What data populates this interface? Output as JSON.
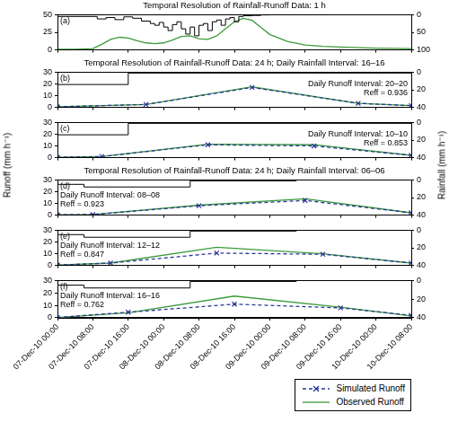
{
  "chart_data": {
    "type": "line",
    "ylabel": "Runoff (mm h⁻¹)",
    "y2label": "Rainfall (mm h⁻¹)",
    "xlim": [
      0,
      80
    ],
    "xticks": [
      {
        "value": 0,
        "label": "07-Dec-10 00:00"
      },
      {
        "value": 8,
        "label": "07-Dec-10 08:00"
      },
      {
        "value": 16,
        "label": "07-Dec-10 16:00"
      },
      {
        "value": 24,
        "label": "08-Dec-10 00:00"
      },
      {
        "value": 32,
        "label": "08-Dec-10 08:00"
      },
      {
        "value": 40,
        "label": "08-Dec-10 16:00"
      },
      {
        "value": 48,
        "label": "09-Dec-10 00:00"
      },
      {
        "value": 56,
        "label": "09-Dec-10 08:00"
      },
      {
        "value": 64,
        "label": "09-Dec-10 16:00"
      },
      {
        "value": 72,
        "label": "10-Dec-10 00:00"
      },
      {
        "value": 80,
        "label": "10-Dec-10 08:00"
      }
    ],
    "grid": false,
    "legend": "bottom right",
    "panels": [
      {
        "title": "Temporal Resolution of Rainfall-Runoff Data: 1 h",
        "annotations": [
          "(a)"
        ],
        "ylim": [
          0,
          50
        ],
        "yticks": [
          0,
          25,
          50
        ],
        "y2lim": [
          100,
          0
        ],
        "y2ticks": [
          0,
          50,
          100
        ],
        "tick_labels": "y",
        "series": [
          {
            "type": "step",
            "axis": "y2",
            "color": "#000000",
            "line_style": "solid",
            "x": [
              0,
              9,
              11,
              13,
              15,
              17,
              19,
              21,
              22,
              23,
              24,
              25,
              26,
              27,
              28,
              29,
              30,
              31,
              32,
              33,
              34,
              35,
              36,
              37,
              38,
              39,
              40,
              41,
              42,
              44,
              46,
              48,
              56
            ],
            "values": [
              0,
              5,
              12,
              8,
              14,
              6,
              10,
              18,
              25,
              30,
              22,
              35,
              45,
              28,
              20,
              40,
              55,
              35,
              60,
              30,
              25,
              45,
              20,
              15,
              30,
              12,
              8,
              20,
              5,
              3,
              2,
              0.5,
              0
            ]
          },
          {
            "name": "Observed Runoff",
            "color": "#3c9a3c",
            "line_style": "solid",
            "marker": "none",
            "x": [
              0,
              4,
              8,
              10,
              12,
              14,
              16,
              18,
              20,
              22,
              24,
              26,
              28,
              30,
              32,
              34,
              36,
              38,
              40,
              42,
              44,
              46,
              48,
              52,
              56,
              60,
              64,
              72,
              80
            ],
            "values": [
              1,
              1,
              2,
              8,
              15,
              18,
              17,
              13,
              10,
              9,
              10,
              14,
              19,
              20,
              16,
              15,
              20,
              30,
              40,
              45,
              42,
              32,
              22,
              12,
              7,
              5,
              4,
              2.5,
              2
            ]
          }
        ]
      },
      {
        "title": "Temporal Resolution of Rainfall-Runoff Data: 24 h; Daily Rainfall Interval: 16–16",
        "annotations": [
          "(b)",
          "Daily Runoff Interval: 20–20",
          "Reff = 0.936"
        ],
        "ylim": [
          0,
          30
        ],
        "yticks": [
          0,
          10,
          20,
          30
        ],
        "y2lim": [
          40,
          0
        ],
        "y2ticks": [
          0,
          20,
          40
        ],
        "tick_labels": "y",
        "series": [
          {
            "type": "step",
            "axis": "y2",
            "color": "#000000",
            "line_style": "solid",
            "x": [
              0,
              16,
              40
            ],
            "values": [
              1,
              14,
              1
            ]
          },
          {
            "name": "Simulated Runoff",
            "color": "#2b3596",
            "line_style": "dashed",
            "marker": "x",
            "x": [
              0,
              20,
              44,
              68,
              80
            ],
            "values": [
              0.5,
              2.5,
              17,
              3.5,
              1.5
            ]
          },
          {
            "name": "Observed Runoff",
            "color": "#3c9a3c",
            "line_style": "solid",
            "marker": "none",
            "x": [
              0,
              20,
              44,
              68,
              80
            ],
            "values": [
              0.5,
              2.5,
              17.5,
              3.5,
              1.5
            ]
          }
        ]
      },
      {
        "annotations": [
          "(c)",
          "Daily Runoff Interval: 10–10",
          "Reff = 0.853"
        ],
        "ylim": [
          0,
          30
        ],
        "yticks": [
          0,
          10,
          20,
          30
        ],
        "y2lim": [
          40,
          0
        ],
        "y2ticks": [
          0,
          20,
          40
        ],
        "tick_labels": "y",
        "series": [
          {
            "type": "step",
            "axis": "y2",
            "color": "#000000",
            "line_style": "solid",
            "x": [
              0,
              16,
              40
            ],
            "values": [
              1,
              14,
              1
            ]
          },
          {
            "name": "Simulated Runoff",
            "color": "#2b3596",
            "line_style": "dashed",
            "marker": "x",
            "x": [
              0,
              10,
              34,
              58,
              80
            ],
            "values": [
              0.3,
              1,
              11,
              10,
              2
            ]
          },
          {
            "name": "Observed Runoff",
            "color": "#3c9a3c",
            "line_style": "solid",
            "marker": "none",
            "x": [
              0,
              10,
              34,
              58,
              80
            ],
            "values": [
              0.3,
              1,
              11.5,
              11,
              2
            ]
          }
        ]
      },
      {
        "title": "Temporal Resolution of Rainfall-Runoff Data: 24 h; Daily Rainfall Interval: 06–06",
        "annotations": [
          "(d)",
          "Daily Runoff Interval: 08–08",
          "Reff = 0.923"
        ],
        "ylim": [
          0,
          30
        ],
        "yticks": [
          0,
          10,
          20,
          30
        ],
        "y2lim": [
          40,
          0
        ],
        "y2ticks": [
          0,
          20,
          40
        ],
        "tick_labels": "y",
        "series": [
          {
            "type": "step",
            "axis": "y2",
            "color": "#000000",
            "line_style": "solid",
            "x": [
              0,
              6,
              30,
              54,
              78
            ],
            "values": [
              0,
              5,
              8,
              1,
              0
            ]
          },
          {
            "name": "Simulated Runoff",
            "color": "#2b3596",
            "line_style": "dashed",
            "marker": "x",
            "x": [
              0,
              8,
              32,
              56,
              80
            ],
            "values": [
              0.3,
              0.5,
              8,
              12.5,
              2
            ]
          },
          {
            "name": "Observed Runoff",
            "color": "#3c9a3c",
            "line_style": "solid",
            "marker": "none",
            "x": [
              0,
              8,
              32,
              56,
              80
            ],
            "values": [
              0.3,
              0.5,
              8.5,
              14,
              2
            ]
          }
        ]
      },
      {
        "annotations": [
          "(e)",
          "Daily Runoff Interval: 12–12",
          "Reff = 0.847"
        ],
        "ylim": [
          0,
          30
        ],
        "yticks": [
          0,
          10,
          20,
          30
        ],
        "y2lim": [
          40,
          0
        ],
        "y2ticks": [
          0,
          20,
          40
        ],
        "tick_labels": "y",
        "series": [
          {
            "type": "step",
            "axis": "y2",
            "color": "#000000",
            "line_style": "solid",
            "x": [
              0,
              6,
              30,
              54,
              78
            ],
            "values": [
              0,
              5,
              8,
              1,
              0
            ]
          },
          {
            "name": "Simulated Runoff",
            "color": "#2b3596",
            "line_style": "dashed",
            "marker": "x",
            "x": [
              0,
              12,
              36,
              60,
              80
            ],
            "values": [
              0.3,
              2,
              10.5,
              9.5,
              2
            ]
          },
          {
            "name": "Observed Runoff",
            "color": "#3c9a3c",
            "line_style": "solid",
            "marker": "none",
            "x": [
              0,
              12,
              36,
              60,
              80
            ],
            "values": [
              0.3,
              2,
              15.5,
              10,
              2
            ]
          }
        ]
      },
      {
        "annotations": [
          "(f)",
          "Daily Runoff Interval: 16–16",
          "Reff = 0.762"
        ],
        "ylim": [
          0,
          30
        ],
        "yticks": [
          0,
          10,
          20,
          30
        ],
        "y2lim": [
          40,
          0
        ],
        "y2ticks": [
          0,
          20,
          40
        ],
        "series": [
          {
            "type": "step",
            "axis": "y2",
            "color": "#000000",
            "line_style": "solid",
            "x": [
              0,
              6,
              30,
              54,
              78
            ],
            "values": [
              0,
              5,
              8,
              1,
              0
            ]
          },
          {
            "name": "Simulated Runoff",
            "color": "#2b3596",
            "line_style": "dashed",
            "marker": "x",
            "x": [
              0,
              16,
              40,
              64,
              80
            ],
            "values": [
              0.3,
              4.5,
              11,
              8,
              2
            ]
          },
          {
            "name": "Observed Runoff",
            "color": "#3c9a3c",
            "line_style": "solid",
            "marker": "none",
            "x": [
              0,
              16,
              40,
              64,
              80
            ],
            "values": [
              0.3,
              4,
              17.5,
              8.5,
              1.5
            ]
          }
        ]
      }
    ]
  }
}
